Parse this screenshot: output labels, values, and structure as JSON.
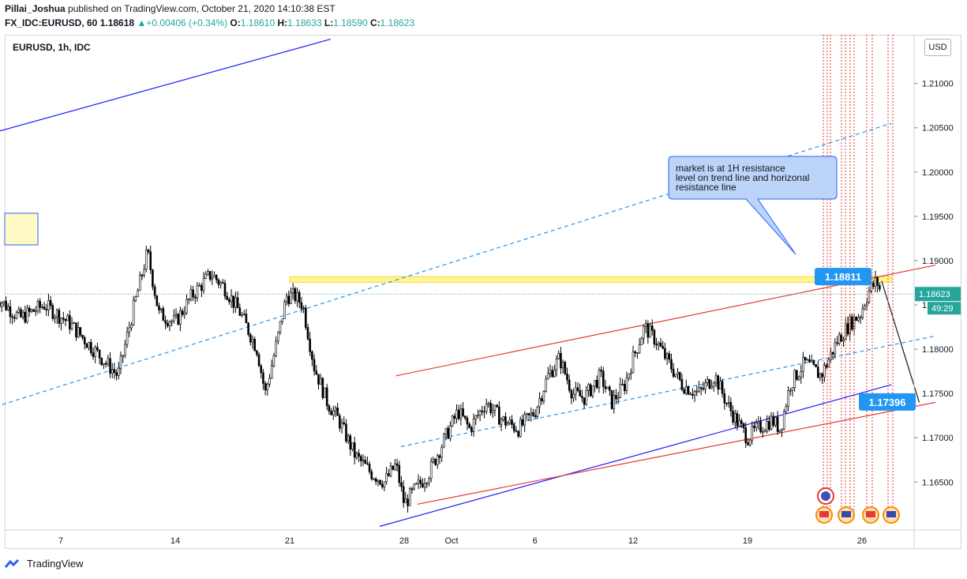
{
  "header": {
    "author": "Pillai_Joshua",
    "published_text": "published on TradingView.com, October 21, 2020 14:10:38 EST",
    "symbol_line": "FX_IDC:EURUSD, 60",
    "last": "1.18618",
    "change": "+0.00406 (+0.34%)",
    "o_label": "O:",
    "o_val": "1.18610",
    "h_label": "H:",
    "h_val": "1.18633",
    "l_label": "L:",
    "l_val": "1.18590",
    "c_label": "C:",
    "c_val": "1.18623"
  },
  "chart_title": "EURUSD, 1h, IDC",
  "currency_button": "USD",
  "branding": "TradingView",
  "colors": {
    "up_green": "#26a69a",
    "resistance_zone": "#ffeb3b",
    "red_channel": "#e53935",
    "blue_trend": "#1a1aff",
    "dashed_blue": "#2196f3",
    "label_blue": "#2196f3",
    "callout_fill": "#bbd4f7",
    "event_red": "#e53935"
  },
  "chart_data": {
    "type": "candlestick",
    "symbol": "EURUSD",
    "interval": "1h",
    "x_ticks": [
      "7",
      "14",
      "21",
      "28",
      "Oct",
      "6",
      "12",
      "19",
      "26"
    ],
    "y_ticks": [
      "1.21000",
      "1.20500",
      "1.20000",
      "1.19500",
      "1.19000",
      "1.18500",
      "1.18000",
      "1.17500",
      "1.17000",
      "1.16500"
    ],
    "ylim": [
      1.1603,
      1.2155
    ],
    "price_path_days": [
      [
        3,
        1.186
      ],
      [
        4.5,
        1.1835
      ],
      [
        6,
        1.185
      ],
      [
        7.5,
        1.183
      ],
      [
        9,
        1.18
      ],
      [
        10.5,
        1.177
      ],
      [
        11.5,
        1.185
      ],
      [
        12.3,
        1.191
      ],
      [
        13,
        1.184
      ],
      [
        14,
        1.183
      ],
      [
        15,
        1.186
      ],
      [
        16.2,
        1.1885
      ],
      [
        17,
        1.187
      ],
      [
        18,
        1.184
      ],
      [
        19,
        1.18
      ],
      [
        19.5,
        1.175
      ],
      [
        20,
        1.179
      ],
      [
        20.8,
        1.186
      ],
      [
        21.3,
        1.186
      ],
      [
        21.8,
        1.185
      ],
      [
        22.5,
        1.178
      ],
      [
        23.3,
        1.174
      ],
      [
        24,
        1.172
      ],
      [
        25,
        1.168
      ],
      [
        26,
        1.166
      ],
      [
        26.8,
        1.165
      ],
      [
        27.5,
        1.167
      ],
      [
        28,
        1.1625
      ],
      [
        28.6,
        1.164
      ],
      [
        29.5,
        1.166
      ],
      [
        30.5,
        1.17
      ],
      [
        31.3,
        1.173
      ],
      [
        32,
        1.171
      ],
      [
        33,
        1.174
      ],
      [
        34,
        1.172
      ],
      [
        35,
        1.171
      ],
      [
        36,
        1.173
      ],
      [
        36.8,
        1.177
      ],
      [
        37.5,
        1.179
      ],
      [
        38.3,
        1.175
      ],
      [
        39,
        1.1745
      ],
      [
        40,
        1.177
      ],
      [
        40.7,
        1.174
      ],
      [
        41.5,
        1.176
      ],
      [
        42,
        1.179
      ],
      [
        42.7,
        1.1825
      ],
      [
        43.4,
        1.181
      ],
      [
        44,
        1.179
      ],
      [
        45,
        1.176
      ],
      [
        46,
        1.175
      ],
      [
        47,
        1.177
      ],
      [
        47.7,
        1.174
      ],
      [
        48.3,
        1.172
      ],
      [
        49,
        1.17
      ],
      [
        49.6,
        1.171
      ],
      [
        50.5,
        1.172
      ],
      [
        51,
        1.171
      ],
      [
        51.6,
        1.176
      ],
      [
        52.5,
        1.1785
      ],
      [
        53.5,
        1.177
      ],
      [
        54.5,
        1.181
      ],
      [
        55.3,
        1.183
      ],
      [
        55.9,
        1.184
      ],
      [
        56.4,
        1.1865
      ],
      [
        56.9,
        1.1877
      ],
      [
        57.2,
        1.1862
      ]
    ],
    "resistance_zone": {
      "y_from": 1.18755,
      "y_to": 1.1882,
      "x_from": 21,
      "x_to": 57.8
    },
    "last_price": 1.18623,
    "countdown": "49:29",
    "labels": [
      {
        "text": "1.18811",
        "y": 1.18811
      },
      {
        "text": "1.17396",
        "y": 1.17396
      }
    ],
    "annotation": "market is at 1H resistance level on trend line and horizonal resistance line"
  }
}
